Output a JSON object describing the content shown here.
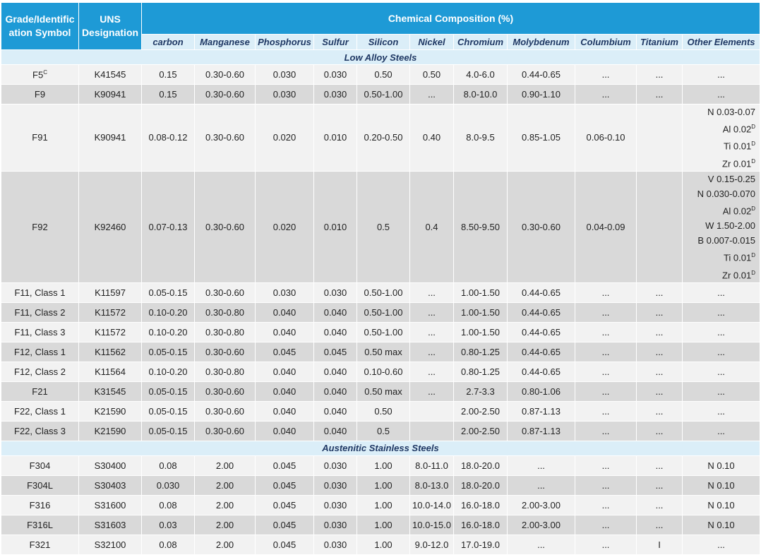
{
  "table": {
    "header": {
      "grade": "Grade/Identification Symbol",
      "uns": "UNS Designation",
      "composition": "Chemical Composition (%)",
      "columns": [
        "carbon",
        "Manganese",
        "Phosphorus",
        "Sulfur",
        "Silicon",
        "Nickel",
        "Chromium",
        "Molybdenum",
        "Columbium",
        "Titanium",
        "Other Elements"
      ]
    },
    "sections": [
      {
        "title": "Low Alloy Steels",
        "rows": [
          [
            {
              "text": "F5",
              "sup": "C"
            },
            "K41545",
            "0.15",
            "0.30-0.60",
            "0.030",
            "0.030",
            "0.50",
            "0.50",
            "4.0-6.0",
            "0.44-0.65",
            "...",
            "...",
            "..."
          ],
          [
            "F9",
            "K90941",
            "0.15",
            "0.30-0.60",
            "0.030",
            "0.030",
            "0.50-1.00",
            "...",
            "8.0-10.0",
            "0.90-1.10",
            "...",
            "...",
            "..."
          ],
          [
            "F91",
            "K90941",
            "0.08-0.12",
            "0.30-0.60",
            "0.020",
            "0.010",
            "0.20-0.50",
            "0.40",
            "8.0-9.5",
            "0.85-1.05",
            "0.06-0.10",
            null,
            [
              "N 0.03-0.07",
              {
                "text": "Al 0.02",
                "sup": "D"
              },
              {
                "text": "Ti 0.01",
                "sup": "D"
              },
              {
                "text": "Zr 0.01",
                "sup": "D"
              }
            ]
          ],
          [
            "F92",
            "K92460",
            "0.07-0.13",
            "0.30-0.60",
            "0.020",
            "0.010",
            "0.5",
            "0.4",
            "8.50-9.50",
            "0.30-0.60",
            "0.04-0.09",
            null,
            [
              "V 0.15-0.25",
              "N 0.030-0.070",
              {
                "text": "Al 0.02",
                "sup": "D"
              },
              "W 1.50-2.00",
              "B 0.007-0.015",
              {
                "text": "Ti 0.01",
                "sup": "D"
              },
              {
                "text": "Zr 0.01",
                "sup": "D"
              }
            ]
          ],
          [
            "F11, Class 1",
            "K11597",
            "0.05-0.15",
            "0.30-0.60",
            "0.030",
            "0.030",
            "0.50-1.00",
            "...",
            "1.00-1.50",
            "0.44-0.65",
            "...",
            "...",
            "..."
          ],
          [
            "F11, Class 2",
            "K11572",
            "0.10-0.20",
            "0.30-0.80",
            "0.040",
            "0.040",
            "0.50-1.00",
            "...",
            "1.00-1.50",
            "0.44-0.65",
            "...",
            "...",
            "..."
          ],
          [
            "F11, Class 3",
            "K11572",
            "0.10-0.20",
            "0.30-0.80",
            "0.040",
            "0.040",
            "0.50-1.00",
            "...",
            "1.00-1.50",
            "0.44-0.65",
            "...",
            "...",
            "..."
          ],
          [
            "F12, Class 1",
            "K11562",
            "0.05-0.15",
            "0.30-0.60",
            "0.045",
            "0.045",
            "0.50 max",
            "...",
            "0.80-1.25",
            "0.44-0.65",
            "...",
            "...",
            "..."
          ],
          [
            "F12, Class 2",
            "K11564",
            "0.10-0.20",
            "0.30-0.80",
            "0.040",
            "0.040",
            "0.10-0.60",
            "...",
            "0.80-1.25",
            "0.44-0.65",
            "...",
            "...",
            "..."
          ],
          [
            "F21",
            "K31545",
            "0.05-0.15",
            "0.30-0.60",
            "0.040",
            "0.040",
            "0.50 max",
            "...",
            "2.7-3.3",
            "0.80-1.06",
            "...",
            "...",
            "..."
          ],
          [
            "F22, Class 1",
            "K21590",
            "0.05-0.15",
            "0.30-0.60",
            "0.040",
            "0.040",
            "0.50",
            null,
            "2.00-2.50",
            "0.87-1.13",
            "...",
            "...",
            "..."
          ],
          [
            "F22, Class 3",
            "K21590",
            "0.05-0.15",
            "0.30-0.60",
            "0.040",
            "0.040",
            "0.5",
            null,
            "2.00-2.50",
            "0.87-1.13",
            "...",
            "...",
            "..."
          ]
        ]
      },
      {
        "title": "Austenitic Stainless Steels",
        "rows": [
          [
            "F304",
            "S30400",
            "0.08",
            "2.00",
            "0.045",
            "0.030",
            "1.00",
            "8.0-11.0",
            "18.0-20.0",
            "...",
            "...",
            "...",
            "N 0.10"
          ],
          [
            "F304L",
            "S30403",
            "0.030",
            "2.00",
            "0.045",
            "0.030",
            "1.00",
            "8.0-13.0",
            "18.0-20.0",
            "...",
            "...",
            "...",
            "N 0.10"
          ],
          [
            "F316",
            "S31600",
            "0.08",
            "2.00",
            "0.045",
            "0.030",
            "1.00",
            "10.0-14.0",
            "16.0-18.0",
            "2.00-3.00",
            "...",
            "...",
            "N 0.10"
          ],
          [
            "F316L",
            "S31603",
            "0.03",
            "2.00",
            "0.045",
            "0.030",
            "1.00",
            "10.0-15.0",
            "16.0-18.0",
            "2.00-3.00",
            "...",
            "...",
            "N 0.10"
          ],
          [
            "F321",
            "S32100",
            "0.08",
            "2.00",
            "0.045",
            "0.030",
            "1.00",
            "9.0-12.0",
            "17.0-19.0",
            "...",
            "...",
            "I",
            "..."
          ]
        ]
      }
    ]
  }
}
